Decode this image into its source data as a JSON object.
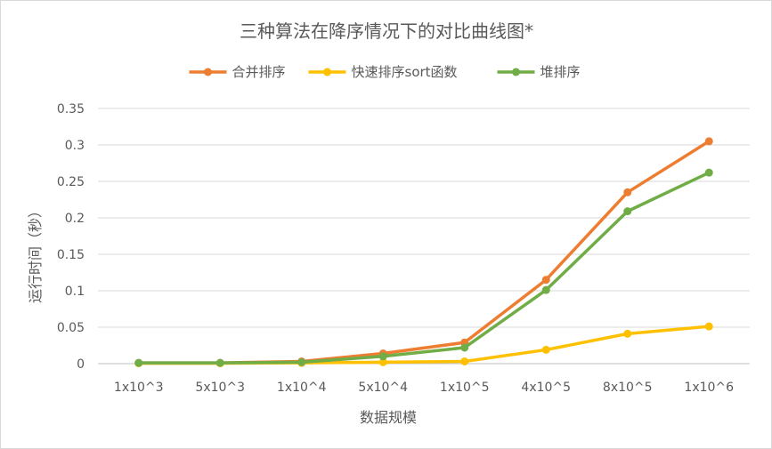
{
  "chart_data": {
    "type": "line",
    "title": "三种算法在降序情况下的对比曲线图*",
    "xlabel": "数据规模",
    "ylabel": "运行时间（秒）",
    "categories": [
      "1x10^3",
      "5x10^3",
      "1x10^4",
      "5x10^4",
      "1x10^5",
      "4x10^5",
      "8x10^5",
      "1x10^6"
    ],
    "ylim": [
      0,
      0.35
    ],
    "yticks": [
      0,
      0.05,
      0.1,
      0.15,
      0.2,
      0.25,
      0.3,
      0.35
    ],
    "ytick_labels": [
      "0",
      "0.05",
      "0.1",
      "0.15",
      "0.2",
      "0.25",
      "0.3",
      "0.35"
    ],
    "grid": true,
    "legend_position": "top",
    "series": [
      {
        "name": "合并排序",
        "color": "#ed7d31",
        "values": [
          0.001,
          0.001,
          0.003,
          0.014,
          0.029,
          0.115,
          0.235,
          0.305
        ]
      },
      {
        "name": "快速排序sort函数",
        "color": "#ffc000",
        "values": [
          0.0005,
          0.0005,
          0.001,
          0.002,
          0.003,
          0.019,
          0.041,
          0.051
        ]
      },
      {
        "name": "堆排序",
        "color": "#70ad47",
        "values": [
          0.001,
          0.001,
          0.002,
          0.01,
          0.022,
          0.101,
          0.209,
          0.262
        ]
      }
    ]
  }
}
